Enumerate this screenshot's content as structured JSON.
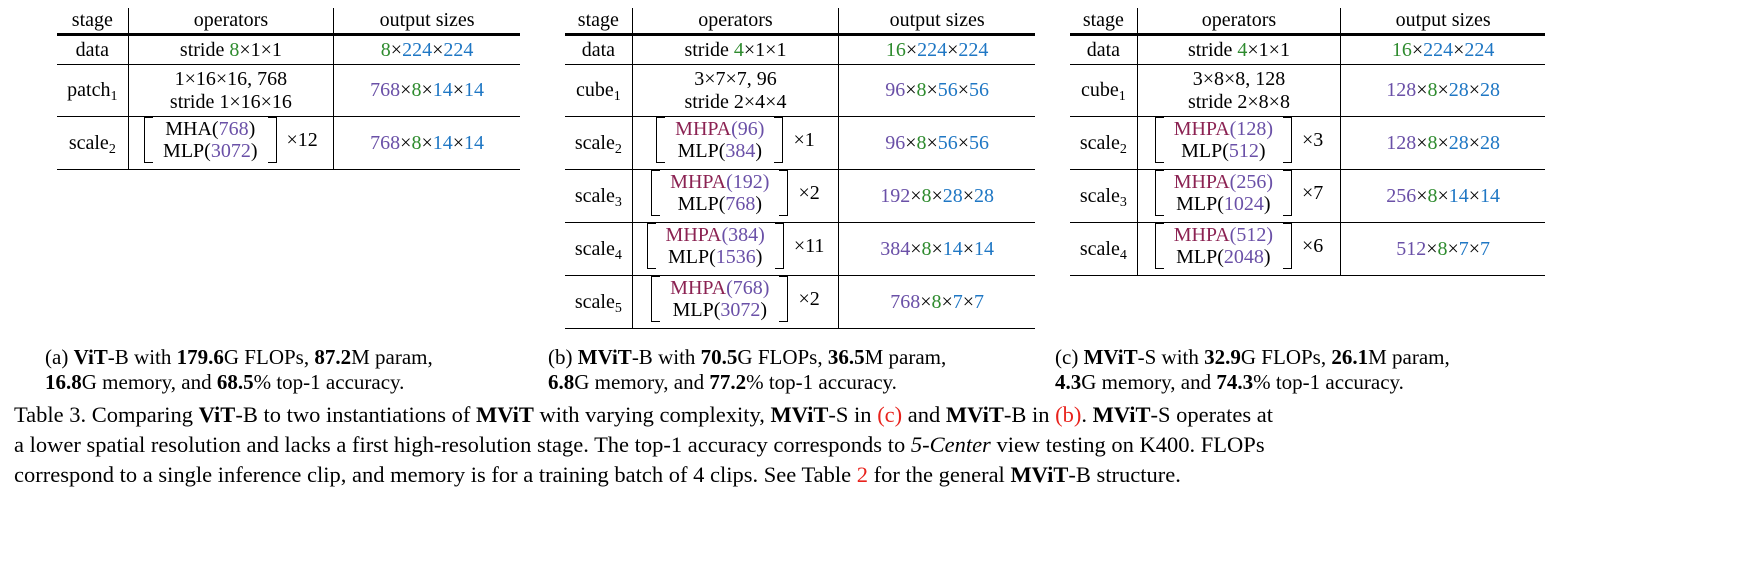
{
  "colors": {
    "g": "#2e8b2e",
    "b": "#1f77c4",
    "p": "#6a50a7",
    "m": "#8b2252",
    "r": "#e8221c",
    "k": "#000000"
  },
  "tables": [
    {
      "id": "a",
      "headers": [
        "stage",
        "operators",
        "output sizes"
      ],
      "rows": [
        {
          "stage": "data",
          "ops": [
            [
              [
                "stride ",
                "k"
              ],
              [
                "8",
                "g"
              ],
              [
                "×1×1",
                "k"
              ]
            ]
          ],
          "out": [
            [
              "8",
              "g"
            ],
            [
              "×",
              "k"
            ],
            [
              "224",
              "b"
            ],
            [
              "×",
              "k"
            ],
            [
              "224",
              "b"
            ]
          ]
        },
        {
          "stage": "patch",
          "sub": "1",
          "ops": [
            [
              [
                "1×16×16, 768",
                "k"
              ]
            ],
            [
              [
                "stride 1×16×16",
                "k"
              ]
            ]
          ],
          "out": [
            [
              "768",
              "p"
            ],
            [
              "×",
              "k"
            ],
            [
              "8",
              "g"
            ],
            [
              "×",
              "k"
            ],
            [
              "14",
              "b"
            ],
            [
              "×",
              "k"
            ],
            [
              "14",
              "b"
            ]
          ]
        },
        {
          "stage": "scale",
          "sub": "2",
          "block": [
            [
              [
                "MHA(",
                "k"
              ],
              [
                "768",
                "p"
              ],
              [
                ")",
                "k"
              ]
            ],
            [
              [
                "MLP(",
                "k"
              ],
              [
                "3072",
                "p"
              ],
              [
                ")",
                "k"
              ]
            ]
          ],
          "rep": "×12",
          "out": [
            [
              "768",
              "p"
            ],
            [
              "×",
              "k"
            ],
            [
              "8",
              "g"
            ],
            [
              "×",
              "k"
            ],
            [
              "14",
              "b"
            ],
            [
              "×",
              "k"
            ],
            [
              "14",
              "b"
            ]
          ]
        }
      ]
    },
    {
      "id": "b",
      "headers": [
        "stage",
        "operators",
        "output sizes"
      ],
      "rows": [
        {
          "stage": "data",
          "ops": [
            [
              [
                "stride ",
                "k"
              ],
              [
                "4",
                "g"
              ],
              [
                "×1×1",
                "k"
              ]
            ]
          ],
          "out": [
            [
              "16",
              "g"
            ],
            [
              "×",
              "k"
            ],
            [
              "224",
              "b"
            ],
            [
              "×",
              "k"
            ],
            [
              "224",
              "b"
            ]
          ]
        },
        {
          "stage": "cube",
          "sub": "1",
          "ops": [
            [
              [
                "3×7×7, 96",
                "k"
              ]
            ],
            [
              [
                "stride 2×4×4",
                "k"
              ]
            ]
          ],
          "out": [
            [
              "96",
              "p"
            ],
            [
              "×",
              "k"
            ],
            [
              "8",
              "g"
            ],
            [
              "×",
              "k"
            ],
            [
              "56",
              "b"
            ],
            [
              "×",
              "k"
            ],
            [
              "56",
              "b"
            ]
          ]
        },
        {
          "stage": "scale",
          "sub": "2",
          "block": [
            [
              [
                "MHPA",
                "m"
              ],
              [
                "(96)",
                "p"
              ]
            ],
            [
              [
                "MLP(",
                "k"
              ],
              [
                "384",
                "p"
              ],
              [
                ")",
                "k"
              ]
            ]
          ],
          "rep": "×1",
          "out": [
            [
              "96",
              "p"
            ],
            [
              "×",
              "k"
            ],
            [
              "8",
              "g"
            ],
            [
              "×",
              "k"
            ],
            [
              "56",
              "b"
            ],
            [
              "×",
              "k"
            ],
            [
              "56",
              "b"
            ]
          ]
        },
        {
          "stage": "scale",
          "sub": "3",
          "block": [
            [
              [
                "MHPA",
                "m"
              ],
              [
                "(192)",
                "p"
              ]
            ],
            [
              [
                "MLP(",
                "k"
              ],
              [
                "768",
                "p"
              ],
              [
                ")",
                "k"
              ]
            ]
          ],
          "rep": "×2",
          "out": [
            [
              "192",
              "p"
            ],
            [
              "×",
              "k"
            ],
            [
              "8",
              "g"
            ],
            [
              "×",
              "k"
            ],
            [
              "28",
              "b"
            ],
            [
              "×",
              "k"
            ],
            [
              "28",
              "b"
            ]
          ]
        },
        {
          "stage": "scale",
          "sub": "4",
          "block": [
            [
              [
                "MHPA",
                "m"
              ],
              [
                "(384)",
                "p"
              ]
            ],
            [
              [
                "MLP(",
                "k"
              ],
              [
                "1536",
                "p"
              ],
              [
                ")",
                "k"
              ]
            ]
          ],
          "rep": "×11",
          "out": [
            [
              "384",
              "p"
            ],
            [
              "×",
              "k"
            ],
            [
              "8",
              "g"
            ],
            [
              "×",
              "k"
            ],
            [
              "14",
              "b"
            ],
            [
              "×",
              "k"
            ],
            [
              "14",
              "b"
            ]
          ]
        },
        {
          "stage": "scale",
          "sub": "5",
          "block": [
            [
              [
                "MHPA",
                "m"
              ],
              [
                "(768)",
                "p"
              ]
            ],
            [
              [
                "MLP(",
                "k"
              ],
              [
                "3072",
                "p"
              ],
              [
                ")",
                "k"
              ]
            ]
          ],
          "rep": "×2",
          "out": [
            [
              "768",
              "p"
            ],
            [
              "×",
              "k"
            ],
            [
              "8",
              "g"
            ],
            [
              "×",
              "k"
            ],
            [
              "7",
              "b"
            ],
            [
              "×",
              "k"
            ],
            [
              "7",
              "b"
            ]
          ]
        }
      ]
    },
    {
      "id": "c",
      "headers": [
        "stage",
        "operators",
        "output sizes"
      ],
      "rows": [
        {
          "stage": "data",
          "ops": [
            [
              [
                "stride ",
                "k"
              ],
              [
                "4",
                "g"
              ],
              [
                "×1×1",
                "k"
              ]
            ]
          ],
          "out": [
            [
              "16",
              "g"
            ],
            [
              "×",
              "k"
            ],
            [
              "224",
              "b"
            ],
            [
              "×",
              "k"
            ],
            [
              "224",
              "b"
            ]
          ]
        },
        {
          "stage": "cube",
          "sub": "1",
          "ops": [
            [
              [
                "3×8×8, 128",
                "k"
              ]
            ],
            [
              [
                "stride 2×8×8",
                "k"
              ]
            ]
          ],
          "out": [
            [
              "128",
              "p"
            ],
            [
              "×",
              "k"
            ],
            [
              "8",
              "g"
            ],
            [
              "×",
              "k"
            ],
            [
              "28",
              "b"
            ],
            [
              "×",
              "k"
            ],
            [
              "28",
              "b"
            ]
          ]
        },
        {
          "stage": "scale",
          "sub": "2",
          "block": [
            [
              [
                "MHPA",
                "m"
              ],
              [
                "(128)",
                "p"
              ]
            ],
            [
              [
                "MLP(",
                "k"
              ],
              [
                "512",
                "p"
              ],
              [
                ")",
                "k"
              ]
            ]
          ],
          "rep": "×3",
          "out": [
            [
              "128",
              "p"
            ],
            [
              "×",
              "k"
            ],
            [
              "8",
              "g"
            ],
            [
              "×",
              "k"
            ],
            [
              "28",
              "b"
            ],
            [
              "×",
              "k"
            ],
            [
              "28",
              "b"
            ]
          ]
        },
        {
          "stage": "scale",
          "sub": "3",
          "block": [
            [
              [
                "MHPA",
                "m"
              ],
              [
                "(256)",
                "p"
              ]
            ],
            [
              [
                "MLP(",
                "k"
              ],
              [
                "1024",
                "p"
              ],
              [
                ")",
                "k"
              ]
            ]
          ],
          "rep": "×7",
          "out": [
            [
              "256",
              "p"
            ],
            [
              "×",
              "k"
            ],
            [
              "8",
              "g"
            ],
            [
              "×",
              "k"
            ],
            [
              "14",
              "b"
            ],
            [
              "×",
              "k"
            ],
            [
              "14",
              "b"
            ]
          ]
        },
        {
          "stage": "scale",
          "sub": "4",
          "block": [
            [
              [
                "MHPA",
                "m"
              ],
              [
                "(512)",
                "p"
              ]
            ],
            [
              [
                "MLP(",
                "k"
              ],
              [
                "2048",
                "p"
              ],
              [
                ")",
                "k"
              ]
            ]
          ],
          "rep": "×6",
          "out": [
            [
              "512",
              "p"
            ],
            [
              "×",
              "k"
            ],
            [
              "8",
              "g"
            ],
            [
              "×",
              "k"
            ],
            [
              "7",
              "b"
            ],
            [
              "×",
              "k"
            ],
            [
              "7",
              "b"
            ]
          ]
        }
      ]
    }
  ],
  "subcaptions": [
    [
      [
        "(a) ",
        ""
      ],
      [
        "ViT",
        "b"
      ],
      [
        "-B with ",
        ""
      ],
      [
        "179.6",
        "b"
      ],
      [
        "G FLOPs, ",
        ""
      ],
      [
        "87.2",
        "b"
      ],
      [
        "M param, ",
        ""
      ],
      [
        "\n",
        ""
      ],
      [
        "16.8",
        "b"
      ],
      [
        "G memory, and ",
        ""
      ],
      [
        "68.5",
        "b"
      ],
      [
        "% top-1 accuracy.",
        ""
      ]
    ],
    [
      [
        "(b) ",
        ""
      ],
      [
        "MViT",
        "b"
      ],
      [
        "-B with ",
        ""
      ],
      [
        "70.5",
        "b"
      ],
      [
        "G FLOPs, ",
        ""
      ],
      [
        "36.5",
        "b"
      ],
      [
        "M param, ",
        ""
      ],
      [
        "\n",
        ""
      ],
      [
        "6.8",
        "b"
      ],
      [
        "G memory, and ",
        ""
      ],
      [
        "77.2",
        "b"
      ],
      [
        "% top-1 accuracy.",
        ""
      ]
    ],
    [
      [
        "(c) ",
        ""
      ],
      [
        "MViT",
        "b"
      ],
      [
        "-S with ",
        ""
      ],
      [
        "32.9",
        "b"
      ],
      [
        "G FLOPs, ",
        ""
      ],
      [
        "26.1",
        "b"
      ],
      [
        "M param, ",
        ""
      ],
      [
        "\n",
        ""
      ],
      [
        "4.3",
        "b"
      ],
      [
        "G memory, and ",
        ""
      ],
      [
        "74.3",
        "b"
      ],
      [
        "% top-1 accuracy.",
        ""
      ]
    ]
  ],
  "caption": [
    [
      "Table 3. Comparing ",
      ""
    ],
    [
      "ViT",
      "b"
    ],
    [
      "-B to two instantiations of ",
      ""
    ],
    [
      "MViT",
      "b"
    ],
    [
      " with varying complexity, ",
      ""
    ],
    [
      "MViT",
      "b"
    ],
    [
      "-S in ",
      ""
    ],
    [
      "(c)",
      "r"
    ],
    [
      " and ",
      ""
    ],
    [
      "MViT",
      "b"
    ],
    [
      "-B in ",
      ""
    ],
    [
      "(b)",
      "r"
    ],
    [
      ". ",
      ""
    ],
    [
      "MViT",
      "b"
    ],
    [
      "-S operates at",
      ""
    ],
    [
      "\n",
      ""
    ],
    [
      "a lower spatial resolution and lacks a first high-resolution stage. The top-1 accuracy corresponds to ",
      ""
    ],
    [
      "5-Center",
      "i"
    ],
    [
      " view testing on K400. FLOPs",
      ""
    ],
    [
      "\n",
      ""
    ],
    [
      "correspond to a single inference clip, and memory is for a training batch of 4 clips. See Table ",
      ""
    ],
    [
      "2",
      "r"
    ],
    [
      " for the general ",
      ""
    ],
    [
      "MViT",
      "b"
    ],
    [
      "-B structure.",
      ""
    ]
  ]
}
